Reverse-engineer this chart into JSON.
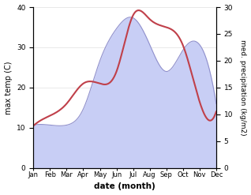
{
  "months": [
    "Jan",
    "Feb",
    "Mar",
    "Apr",
    "May",
    "Jun",
    "Jul",
    "Aug",
    "Sep",
    "Oct",
    "Nov",
    "Dec"
  ],
  "temp_values": [
    10.5,
    13.0,
    16.0,
    21.0,
    21.0,
    24.0,
    38.0,
    37.0,
    35.0,
    30.5,
    16.5,
    14.0
  ],
  "precip_values": [
    8.0,
    8.0,
    8.0,
    11.0,
    20.0,
    26.0,
    28.0,
    23.0,
    18.0,
    22.0,
    23.0,
    12.0
  ],
  "temp_color": "#c0404a",
  "precip_fill_color": "#c8cef5",
  "precip_line_color": "#9090cc",
  "xlabel": "date (month)",
  "ylabel_left": "max temp (C)",
  "ylabel_right": "med. precipitation (kg/m2)",
  "ylim_left": [
    0,
    40
  ],
  "ylim_right": [
    0,
    30
  ],
  "yticks_left": [
    0,
    10,
    20,
    30,
    40
  ],
  "yticks_right": [
    0,
    5,
    10,
    15,
    20,
    25,
    30
  ],
  "background_color": "#ffffff",
  "figwidth": 3.18,
  "figheight": 2.47,
  "dpi": 100
}
